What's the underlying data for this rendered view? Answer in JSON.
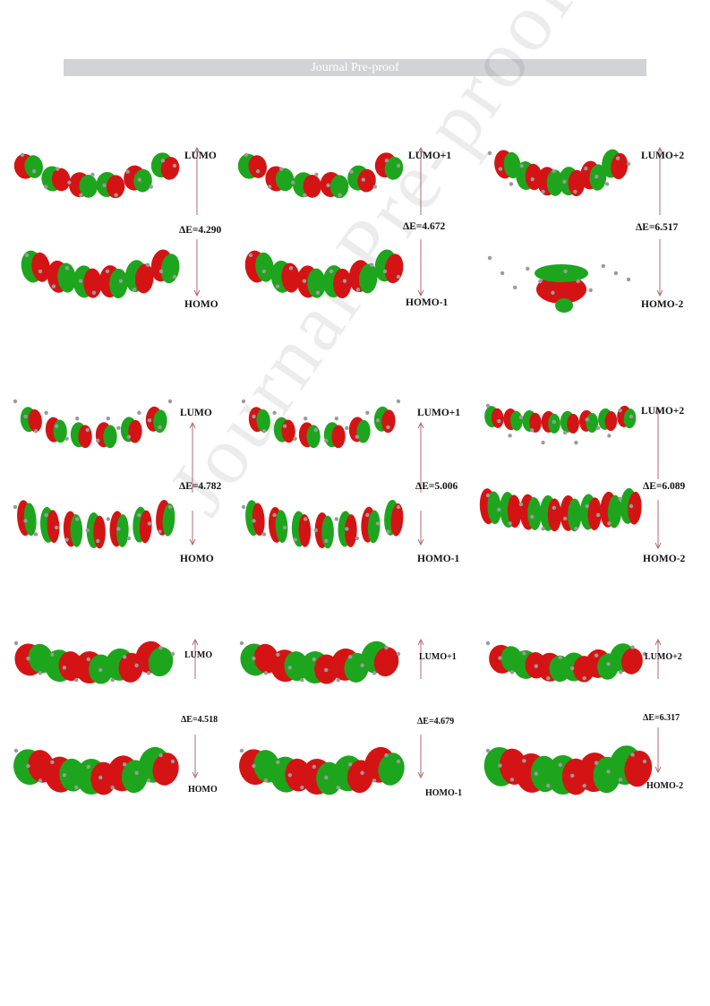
{
  "header": {
    "banner": "Journal Pre-proof"
  },
  "watermark": "Journal Pre-proof",
  "colors": {
    "lobe_positive": "#d41414",
    "lobe_negative": "#1ea51e",
    "arrow": "#b36b6b",
    "banner_bg": "#d2d3d6"
  },
  "rows": [
    {
      "panels": [
        {
          "top": "LUMO",
          "gap": "ΔE=4.290",
          "bottom": "HOMO"
        },
        {
          "top": "LUMO+1",
          "gap": "ΔE=4.672",
          "bottom": "HOMO-1"
        },
        {
          "top": "LUMO+2",
          "gap": "ΔE=6.517",
          "bottom": "HOMO-2"
        }
      ]
    },
    {
      "panels": [
        {
          "top": "LUMO",
          "gap": "ΔE=4.782",
          "bottom": "HOMO"
        },
        {
          "top": "LUMO+1",
          "gap": "ΔE=5.006",
          "bottom": "HOMO-1"
        },
        {
          "top": "LUMO+2",
          "gap": "ΔE=6.089",
          "bottom": "HOMO-2"
        }
      ]
    },
    {
      "panels": [
        {
          "top": "LUMO",
          "gap": "ΔE=4.518",
          "bottom": "HOMO"
        },
        {
          "top": "LUMO+1",
          "gap": "ΔE=4.679",
          "bottom": "HOMO-1"
        },
        {
          "top": "LUMO+2",
          "gap": "ΔE=6.317",
          "bottom": "HOMO-2"
        }
      ]
    }
  ]
}
